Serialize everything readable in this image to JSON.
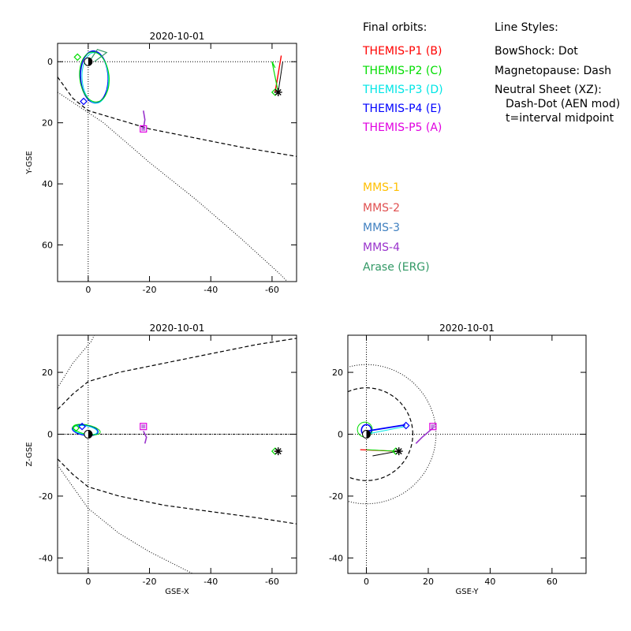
{
  "chart_data": [
    {
      "type": "scatter",
      "title": "2020-10-01",
      "xlabel": "",
      "ylabel": "Y-GSE",
      "xlim": [
        10,
        -68
      ],
      "ylim": [
        -6,
        72
      ],
      "x_ticks": [
        0,
        -20,
        -40,
        -60
      ],
      "y_ticks": [
        0,
        20,
        40,
        60
      ],
      "x_ticklabels": [
        "0",
        "-20",
        "-40",
        "-60"
      ],
      "y_ticklabels": [
        "0",
        "20",
        "40",
        "60"
      ],
      "grid": false
    },
    {
      "type": "scatter",
      "title": "2020-10-01",
      "xlabel": "GSE-X",
      "ylabel": "Z-GSE",
      "xlim": [
        10,
        -68
      ],
      "ylim": [
        -45,
        32
      ],
      "x_ticks": [
        0,
        -20,
        -40,
        -60
      ],
      "y_ticks": [
        20,
        0,
        -20,
        -40
      ],
      "x_ticklabels": [
        "0",
        "-20",
        "-40",
        "-60"
      ],
      "y_ticklabels": [
        "20",
        "0",
        "-20",
        "-40"
      ],
      "grid": false
    },
    {
      "type": "scatter",
      "title": "2020-10-01",
      "xlabel": "GSE-Y",
      "ylabel": "",
      "xlim": [
        -6,
        71
      ],
      "ylim": [
        -45,
        32
      ],
      "x_ticks": [
        0,
        20,
        40,
        60
      ],
      "y_ticks": [
        20,
        0,
        -20,
        -40
      ],
      "x_ticklabels": [
        "0",
        "20",
        "40",
        "60"
      ],
      "y_ticklabels": [
        "20",
        "0",
        "-20",
        "-40"
      ],
      "grid": false
    }
  ],
  "legend": {
    "heading": "Final orbits:",
    "themis": [
      {
        "label": "THEMIS-P1 (B)",
        "color": "#ff0000"
      },
      {
        "label": "THEMIS-P2 (C)",
        "color": "#00dd00"
      },
      {
        "label": "THEMIS-P3 (D)",
        "color": "#00e5e5"
      },
      {
        "label": "THEMIS-P4 (E)",
        "color": "#0000ff"
      },
      {
        "label": "THEMIS-P5 (A)",
        "color": "#e000e0"
      }
    ],
    "mms": [
      {
        "label": "MMS-1",
        "color": "#ffbf00"
      },
      {
        "label": "MMS-2",
        "color": "#e05050"
      },
      {
        "label": "MMS-3",
        "color": "#4080c0"
      },
      {
        "label": "MMS-4",
        "color": "#9933cc"
      },
      {
        "label": "Arase (ERG)",
        "color": "#339966"
      }
    ]
  },
  "styles": {
    "heading": "Line Styles:",
    "bowshock": "BowShock: Dot",
    "magnetopause": "Magnetopause: Dash",
    "neutral_sheet": "Neutral Sheet (XZ):",
    "aen": "Dash-Dot (AEN mod)",
    "midpoint": "t=interval midpoint"
  }
}
